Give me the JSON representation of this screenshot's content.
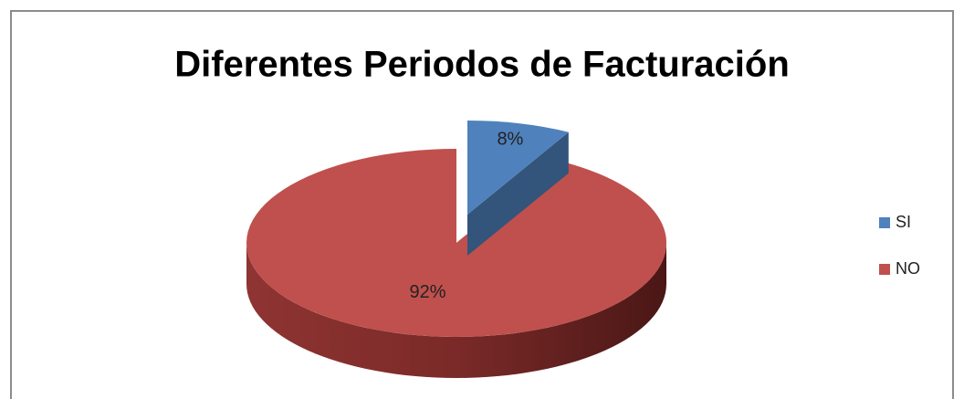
{
  "chart_data": {
    "type": "pie",
    "title": "Diferentes Periodos de Facturación",
    "categories": [
      "SI",
      "NO"
    ],
    "values": [
      8,
      92
    ],
    "value_labels": [
      "8%",
      "92%"
    ],
    "colors": [
      "#4f81bd",
      "#c0504d"
    ],
    "legend": "right"
  }
}
